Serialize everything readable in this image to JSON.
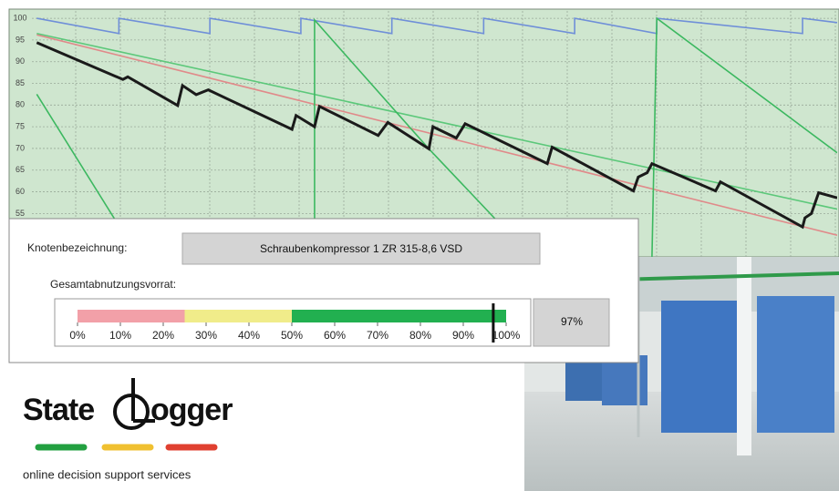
{
  "chart_data": {
    "type": "line",
    "grid": true,
    "ylim": [
      45,
      101.7
    ],
    "xlim": [
      0,
      100
    ],
    "yticks": [
      55,
      60,
      65,
      70,
      75,
      80,
      85,
      90,
      95,
      100
    ],
    "series": [
      {
        "color": "#6f8fd8",
        "x": [
          0.6,
          10.8,
          10.8,
          22.1,
          22.1,
          33.4,
          33.4,
          44.7,
          44.7,
          56.1,
          56.1,
          67.4,
          67.4,
          77.6,
          77.6,
          95.7,
          95.7,
          100
        ],
        "values": [
          100,
          96.5,
          100,
          96.5,
          100,
          96.5,
          100,
          96.5,
          100,
          96.5,
          100,
          96.5,
          100,
          96.5,
          100,
          96.5,
          100,
          99
        ]
      },
      {
        "color": "#e08a8a",
        "x": [
          0.6,
          100
        ],
        "values": [
          96.2,
          50
        ]
      },
      {
        "color": "#5cc87a",
        "x": [
          0.6,
          100
        ],
        "values": [
          96.5,
          56
        ]
      },
      {
        "color": "#3cb860",
        "x": [
          35.1,
          35.1,
          49.3,
          62
        ],
        "values": [
          45,
          99.6,
          69.9,
          45
        ]
      },
      {
        "color": "#3cb860",
        "x": [
          77,
          77.6,
          100
        ],
        "values": [
          45,
          100,
          69
        ]
      },
      {
        "color": "#3cb860",
        "x": [
          0.6,
          13
        ],
        "values": [
          82.5,
          45.6
        ]
      },
      {
        "color": "#1a1a1a",
        "x": [
          0.6,
          11.3,
          11.9,
          18.1,
          18.7,
          20.4,
          21.9,
          32.3,
          32.8,
          35.1,
          35.7,
          43.0,
          44.2,
          49.3,
          49.8,
          52.7,
          53.8,
          64.0,
          64.6,
          74.7,
          75.3,
          76.4,
          77.0,
          84.9,
          85.5,
          95.7,
          96.0,
          96.8,
          97.7,
          100
        ],
        "values": [
          94.4,
          85.9,
          86.5,
          79.9,
          84.5,
          82.4,
          83.5,
          74.4,
          77.6,
          75,
          79.7,
          73,
          76,
          69.9,
          75,
          72.4,
          75.7,
          66.5,
          70.3,
          60.2,
          63.4,
          64.4,
          66.5,
          60.2,
          62.3,
          51.9,
          54,
          55,
          59.8,
          58.6
        ]
      }
    ]
  },
  "panel": {
    "node_label": "Knotenbezeichnung:",
    "node_value": "Schraubenkompressor 1 ZR 315-8,6 VSD",
    "reserve_label": "Gesamtabnutzungsvorrat:",
    "gauge": {
      "value": 97,
      "value_label": "97%",
      "xlim": [
        0,
        100
      ],
      "bands": [
        0,
        25,
        50,
        100
      ],
      "band_colors": [
        "#f2a0a8",
        "#f0ec8a",
        "#22b050"
      ],
      "ticks": [
        {
          "value": 0,
          "label": "0%"
        },
        {
          "value": 10,
          "label": "10%"
        },
        {
          "value": 20,
          "label": "20%"
        },
        {
          "value": 30,
          "label": "30%"
        },
        {
          "value": 40,
          "label": "40%"
        },
        {
          "value": 50,
          "label": "50%"
        },
        {
          "value": 60,
          "label": "60%"
        },
        {
          "value": 70,
          "label": "70%"
        },
        {
          "value": 80,
          "label": "80%"
        },
        {
          "value": 90,
          "label": "90%"
        },
        {
          "value": 100,
          "label": "100%"
        }
      ]
    }
  },
  "logo": {
    "word1": "State",
    "word2": "ogger",
    "tagline": "online decision support services"
  }
}
